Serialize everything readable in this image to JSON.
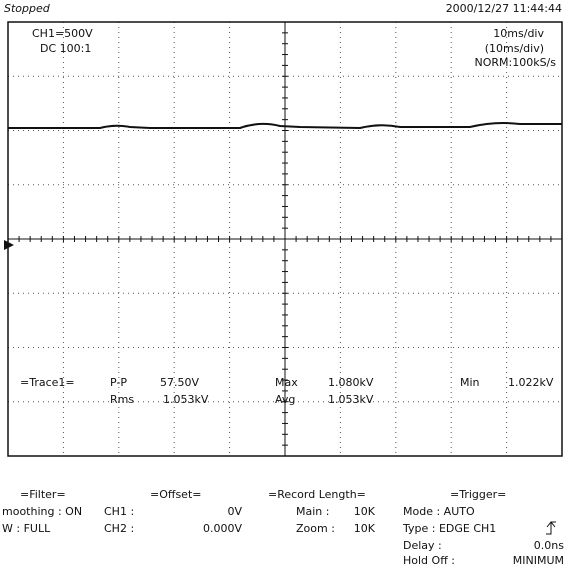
{
  "header": {
    "status": "Stopped",
    "datetime": "2000/12/27 11:44:44",
    "channel": "CH1=500V",
    "coupling": "DC 100:1",
    "timebase": "10ms/div",
    "timebase_zoom": "(10ms/div)",
    "sampling": "NORM:100kS/s"
  },
  "measurements": {
    "trace": "=Trace1=",
    "pp_label": "P-P",
    "pp_value": "57.50V",
    "max_label": "Max",
    "max_value": "1.080kV",
    "min_label": "Min",
    "min_value": "1.022kV",
    "rms_label": "Rms",
    "rms_value": "1.053kV",
    "avg_label": "Avg",
    "avg_value": "1.053kV"
  },
  "settings": {
    "filter": {
      "title": "=Filter=",
      "smoothing": "moothing : ON",
      "bw": "W : FULL"
    },
    "offset": {
      "title": "=Offset=",
      "ch1_label": "CH1 :",
      "ch1_value": "0V",
      "ch2_label": "CH2 :",
      "ch2_value": "0.000V"
    },
    "record": {
      "title": "=Record Length=",
      "main_label": "Main :",
      "main_value": "10K",
      "zoom_label": "Zoom :",
      "zoom_value": "10K"
    },
    "trigger": {
      "title": "=Trigger=",
      "mode": "Mode : AUTO",
      "type": "Type : EDGE CH1",
      "delay_label": "Delay :",
      "delay_value": "0.0ns",
      "holdoff_label": "Hold Off :",
      "holdoff_value": "MINIMUM"
    }
  }
}
